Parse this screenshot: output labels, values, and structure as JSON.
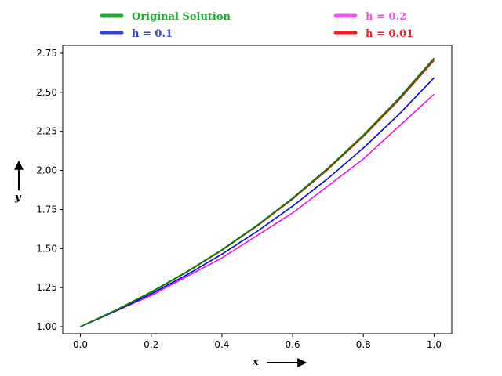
{
  "chart_data": {
    "type": "line",
    "title": "",
    "xlabel": "x",
    "ylabel": "y",
    "xlim": [
      -0.05,
      1.05
    ],
    "ylim": [
      0.955,
      2.8
    ],
    "xticks": [
      "0.0",
      "0.2",
      "0.4",
      "0.6",
      "0.8",
      "1.0"
    ],
    "yticks": [
      "1.00",
      "1.25",
      "1.50",
      "1.75",
      "2.00",
      "2.25",
      "2.50",
      "2.75"
    ],
    "grid": false,
    "legend_position": "top, above plot",
    "series": [
      {
        "name": "h = 0.2",
        "color": "#ee11ee",
        "legend_color": "#ee55ee",
        "x": [
          0.0,
          0.2,
          0.4,
          0.6,
          0.8,
          1.0
        ],
        "y": [
          1.0,
          1.2,
          1.44,
          1.728,
          2.0736,
          2.48832
        ]
      },
      {
        "name": "h = 0.1",
        "color": "#0000ee",
        "legend_color": "#3344cc",
        "x": [
          0.0,
          0.1,
          0.2,
          0.3,
          0.4,
          0.5,
          0.6,
          0.7,
          0.8,
          0.9,
          1.0
        ],
        "y": [
          1.0,
          1.1,
          1.21,
          1.331,
          1.4641,
          1.61051,
          1.771561,
          1.948717,
          2.143589,
          2.357948,
          2.593742
        ]
      },
      {
        "name": "h = 0.01",
        "color": "#cc2200",
        "legend_color": "#ee2222",
        "x": [
          0.0,
          0.1,
          0.2,
          0.3,
          0.4,
          0.5,
          0.6,
          0.7,
          0.8,
          0.9,
          1.0
        ],
        "y": [
          1.0,
          1.1046,
          1.2202,
          1.3478,
          1.4889,
          1.6446,
          1.8167,
          2.0068,
          2.2167,
          2.4486,
          2.7048
        ]
      },
      {
        "name": "Original Solution",
        "color": "#117711",
        "legend_color": "#22aa33",
        "x": [
          0.0,
          0.1,
          0.2,
          0.3,
          0.4,
          0.5,
          0.6,
          0.7,
          0.8,
          0.9,
          1.0
        ],
        "y": [
          1.0,
          1.10517,
          1.2214,
          1.34986,
          1.49182,
          1.64872,
          1.82212,
          2.01375,
          2.22554,
          2.4596,
          2.71828
        ]
      }
    ]
  },
  "legend": {
    "items": [
      {
        "name": "Original Solution",
        "color": "#22aa33"
      },
      {
        "name": "h = 0.2",
        "color": "#ee55ee"
      },
      {
        "name": "h = 0.1",
        "color": "#3344cc"
      },
      {
        "name": "h = 0.01",
        "color": "#ee2222"
      }
    ]
  }
}
